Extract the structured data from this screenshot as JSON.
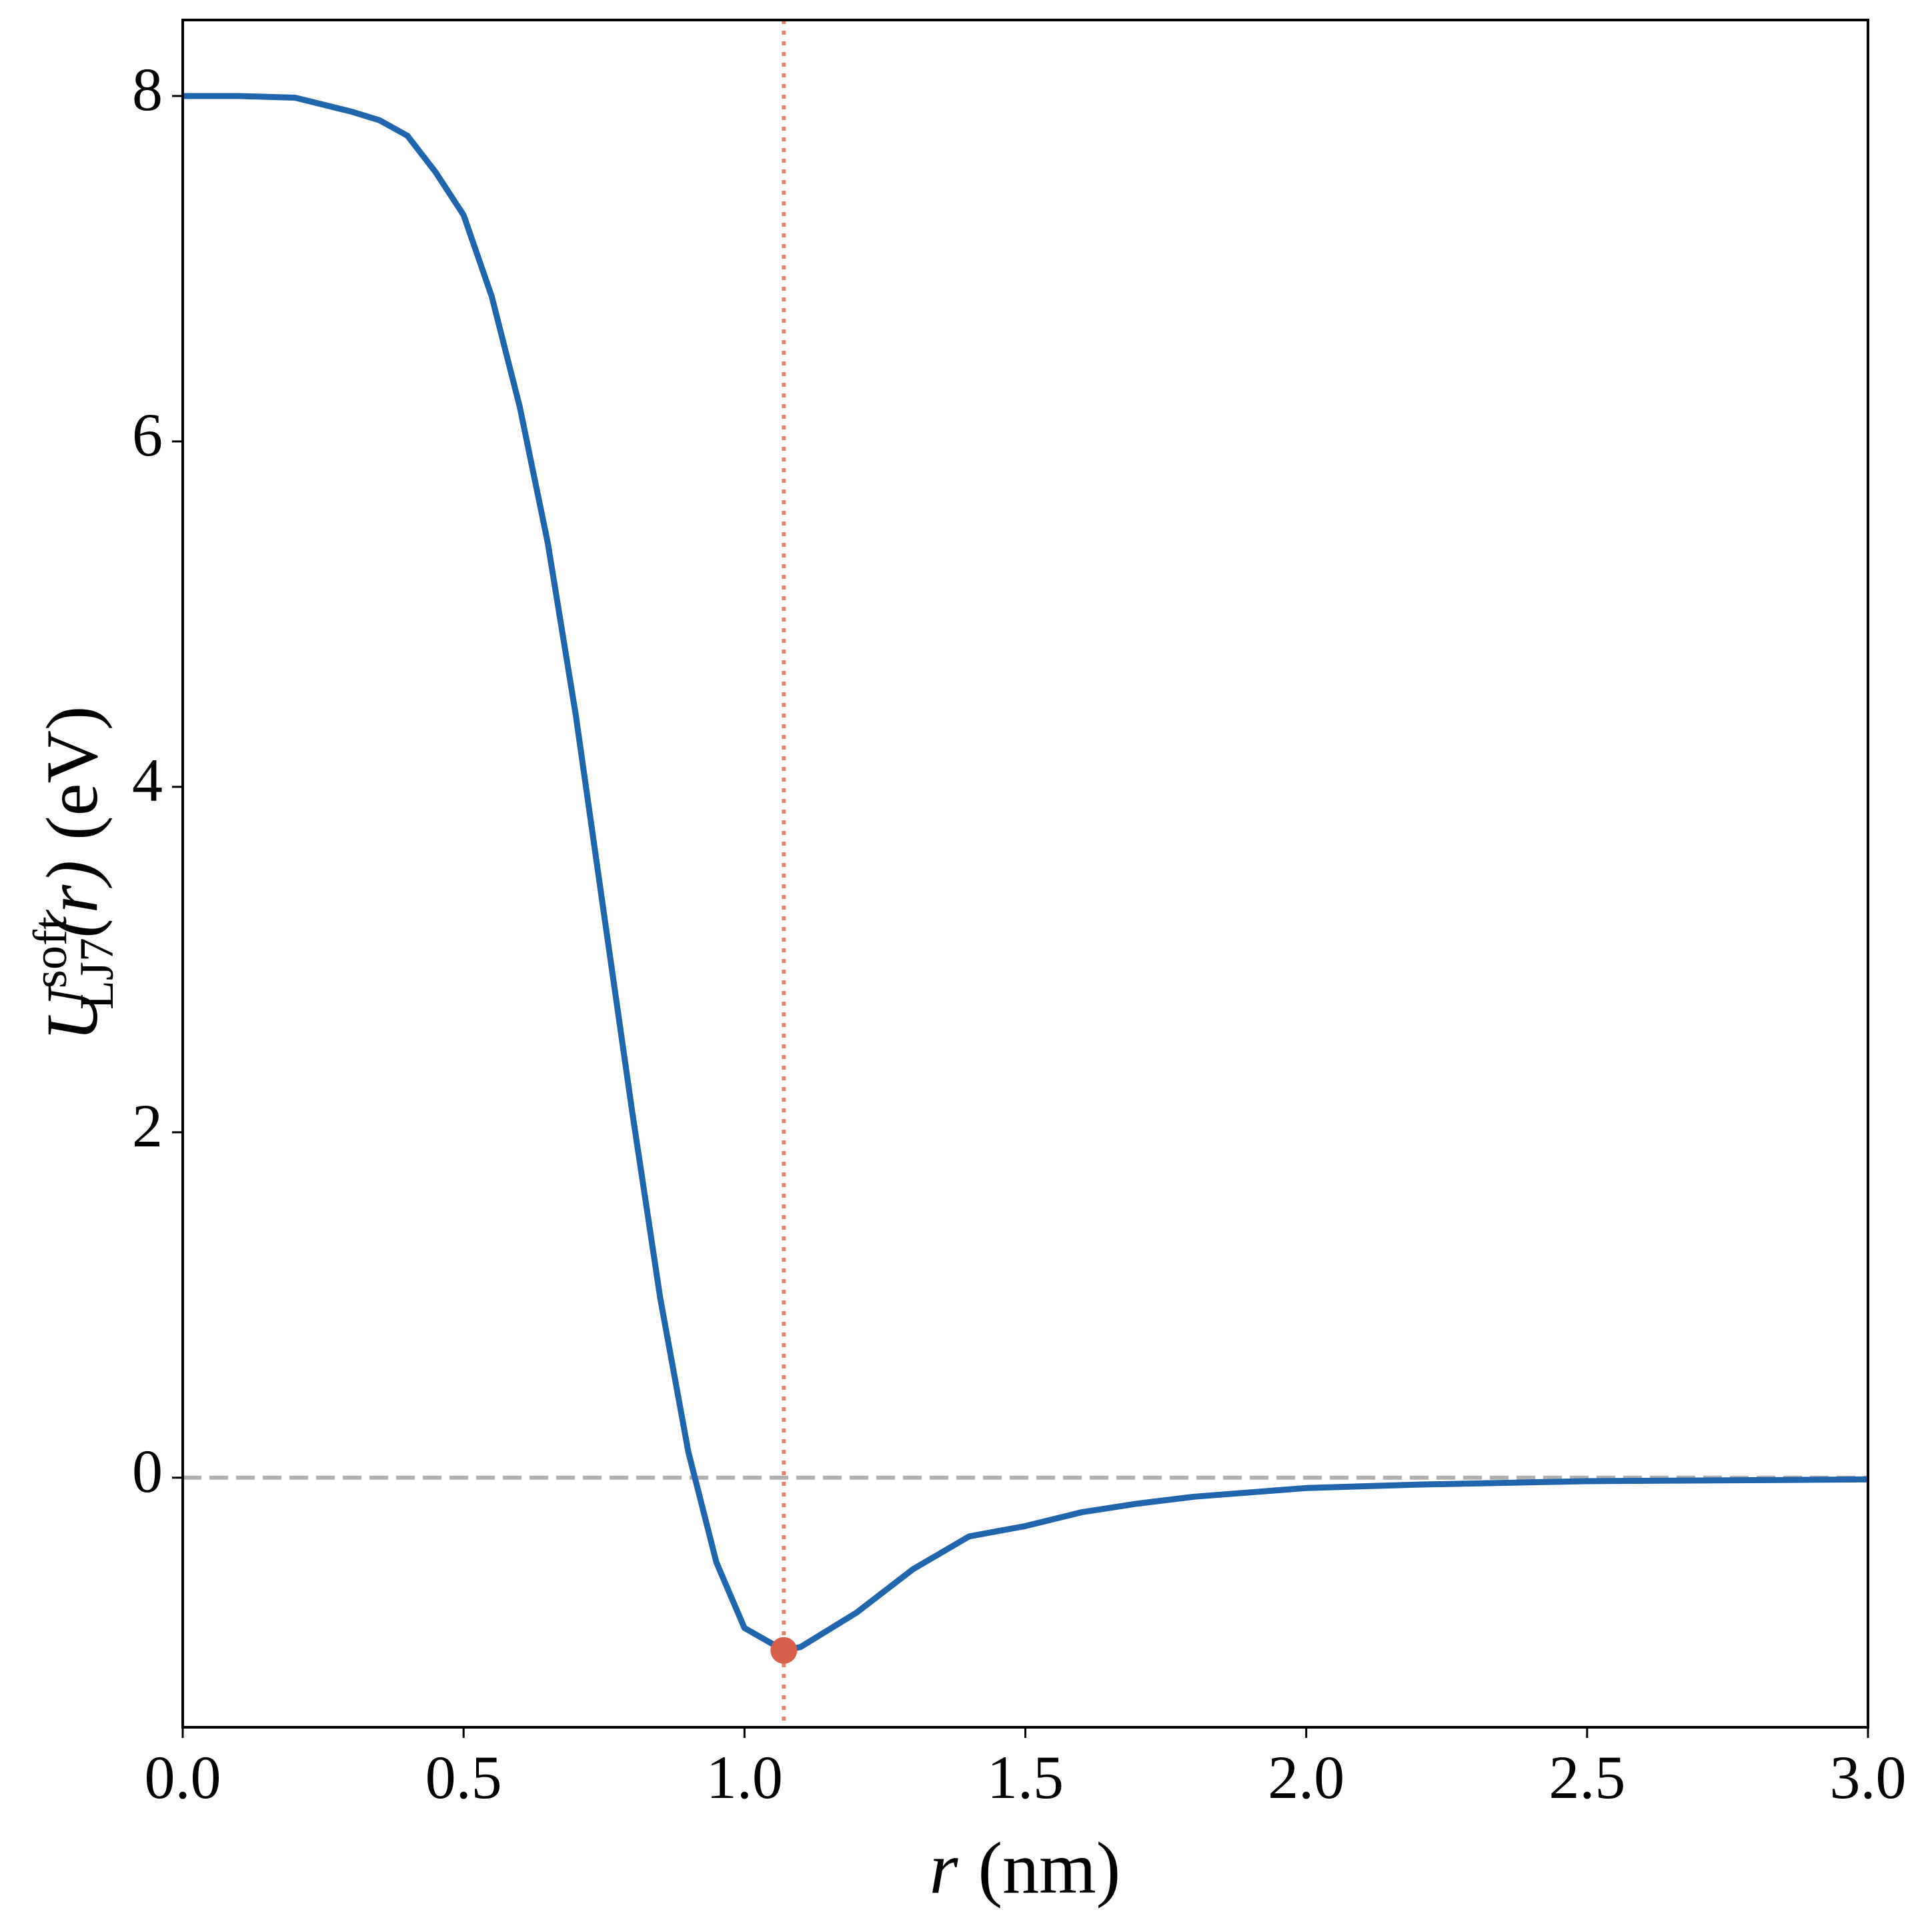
{
  "chart_data": {
    "type": "line",
    "xlabel": {
      "var": "r",
      "unit": "(nm)"
    },
    "ylabel": {
      "base": "U",
      "sup": "soft",
      "sub": "LJ7",
      "arg": "(r)",
      "unit": "(eV)"
    },
    "x": [
      0,
      0.1,
      0.2,
      0.3,
      0.35,
      0.4,
      0.45,
      0.5,
      0.55,
      0.6,
      0.65,
      0.7,
      0.75,
      0.8,
      0.85,
      0.9,
      0.95,
      1.0,
      1.07,
      1.1,
      1.2,
      1.3,
      1.4,
      1.5,
      1.6,
      1.7,
      1.8,
      2.0,
      2.2,
      2.5,
      3.0
    ],
    "series": [
      {
        "color": "#2166ac",
        "values": [
          8,
          8,
          7.99,
          7.91,
          7.86,
          7.77,
          7.56,
          7.31,
          6.84,
          6.2,
          5.41,
          4.41,
          3.26,
          2.12,
          1.04,
          0.15,
          -0.49,
          -0.87,
          -1.0,
          -0.98,
          -0.78,
          -0.53,
          -0.34,
          -0.28,
          -0.2,
          -0.15,
          -0.11,
          -0.06,
          -0.04,
          -0.02,
          -0.01
        ]
      }
    ],
    "hline": {
      "value": 0,
      "color": "#b0b0b0"
    },
    "vline": {
      "value": 1.07,
      "color": "#e8806a"
    },
    "marker": {
      "x": 1.07,
      "y": -1.0,
      "color": "#d6604d"
    },
    "xlim": [
      0,
      3
    ],
    "ylim": [
      -1.445,
      8.44
    ],
    "xticks": [
      {
        "value": 0,
        "label": "0.0"
      },
      {
        "value": 0.5,
        "label": "0.5"
      },
      {
        "value": 1,
        "label": "1.0"
      },
      {
        "value": 1.5,
        "label": "1.5"
      },
      {
        "value": 2,
        "label": "2.0"
      },
      {
        "value": 2.5,
        "label": "2.5"
      },
      {
        "value": 3,
        "label": "3.0"
      }
    ],
    "yticks": [
      0,
      2,
      4,
      6,
      8
    ]
  }
}
